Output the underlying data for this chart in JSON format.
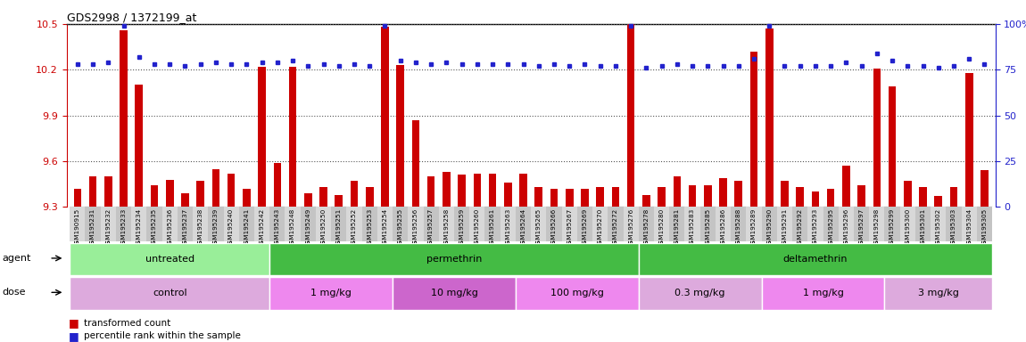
{
  "title": "GDS2998 / 1372199_at",
  "samples": [
    "GSM190915",
    "GSM195231",
    "GSM195232",
    "GSM195233",
    "GSM195234",
    "GSM195235",
    "GSM195236",
    "GSM195237",
    "GSM195238",
    "GSM195239",
    "GSM195240",
    "GSM195241",
    "GSM195242",
    "GSM195243",
    "GSM195248",
    "GSM195249",
    "GSM195250",
    "GSM195251",
    "GSM195252",
    "GSM195253",
    "GSM195254",
    "GSM195255",
    "GSM195256",
    "GSM195257",
    "GSM195258",
    "GSM195259",
    "GSM195260",
    "GSM195261",
    "GSM195263",
    "GSM195264",
    "GSM195265",
    "GSM195266",
    "GSM195267",
    "GSM195269",
    "GSM195270",
    "GSM195272",
    "GSM195276",
    "GSM195278",
    "GSM195280",
    "GSM195281",
    "GSM195283",
    "GSM195285",
    "GSM195286",
    "GSM195288",
    "GSM195289",
    "GSM195290",
    "GSM195291",
    "GSM195292",
    "GSM195293",
    "GSM195295",
    "GSM195296",
    "GSM195297",
    "GSM195298",
    "GSM195299",
    "GSM195300",
    "GSM195301",
    "GSM195302",
    "GSM195303",
    "GSM195304",
    "GSM195305"
  ],
  "transformed_count": [
    9.42,
    9.5,
    9.5,
    10.46,
    10.1,
    9.44,
    9.48,
    9.39,
    9.47,
    9.55,
    9.52,
    9.42,
    10.22,
    9.59,
    10.22,
    9.39,
    9.43,
    9.38,
    9.47,
    9.43,
    10.48,
    10.23,
    9.87,
    9.5,
    9.53,
    9.51,
    9.52,
    9.52,
    9.46,
    9.52,
    9.43,
    9.42,
    9.42,
    9.42,
    9.43,
    9.43,
    10.5,
    9.38,
    9.43,
    9.5,
    9.44,
    9.44,
    9.49,
    9.47,
    10.32,
    10.47,
    9.47,
    9.43,
    9.4,
    9.42,
    9.57,
    9.44,
    10.21,
    10.09,
    9.47,
    9.43,
    9.37,
    9.43,
    10.18,
    9.54
  ],
  "percentile_rank": [
    78,
    78,
    79,
    99,
    82,
    78,
    78,
    77,
    78,
    79,
    78,
    78,
    79,
    79,
    80,
    77,
    78,
    77,
    78,
    77,
    99,
    80,
    79,
    78,
    79,
    78,
    78,
    78,
    78,
    78,
    77,
    78,
    77,
    78,
    77,
    77,
    99,
    76,
    77,
    78,
    77,
    77,
    77,
    77,
    81,
    99,
    77,
    77,
    77,
    77,
    79,
    77,
    84,
    80,
    77,
    77,
    76,
    77,
    81,
    78
  ],
  "ylim_left": [
    9.3,
    10.5
  ],
  "ylim_right": [
    0,
    100
  ],
  "yticks_left": [
    9.3,
    9.6,
    9.9,
    10.2,
    10.5
  ],
  "yticks_right": [
    0,
    25,
    50,
    75,
    100
  ],
  "agent_groups": [
    {
      "label": "untreated",
      "start": 0,
      "end": 13,
      "color": "#99EE99"
    },
    {
      "label": "permethrin",
      "start": 13,
      "end": 37,
      "color": "#44BB44"
    },
    {
      "label": "deltamethrin",
      "start": 37,
      "end": 60,
      "color": "#44BB44"
    }
  ],
  "dose_groups": [
    {
      "label": "control",
      "start": 0,
      "end": 13,
      "color": "#DDAADD"
    },
    {
      "label": "1 mg/kg",
      "start": 13,
      "end": 21,
      "color": "#EE88EE"
    },
    {
      "label": "10 mg/kg",
      "start": 21,
      "end": 29,
      "color": "#CC66CC"
    },
    {
      "label": "100 mg/kg",
      "start": 29,
      "end": 37,
      "color": "#EE88EE"
    },
    {
      "label": "0.3 mg/kg",
      "start": 37,
      "end": 45,
      "color": "#DDAADD"
    },
    {
      "label": "1 mg/kg",
      "start": 45,
      "end": 53,
      "color": "#EE88EE"
    },
    {
      "label": "3 mg/kg",
      "start": 53,
      "end": 60,
      "color": "#DDAADD"
    }
  ],
  "bar_color": "#CC0000",
  "dot_color": "#2222CC",
  "left_axis_color": "#CC0000",
  "right_axis_color": "#2222CC"
}
